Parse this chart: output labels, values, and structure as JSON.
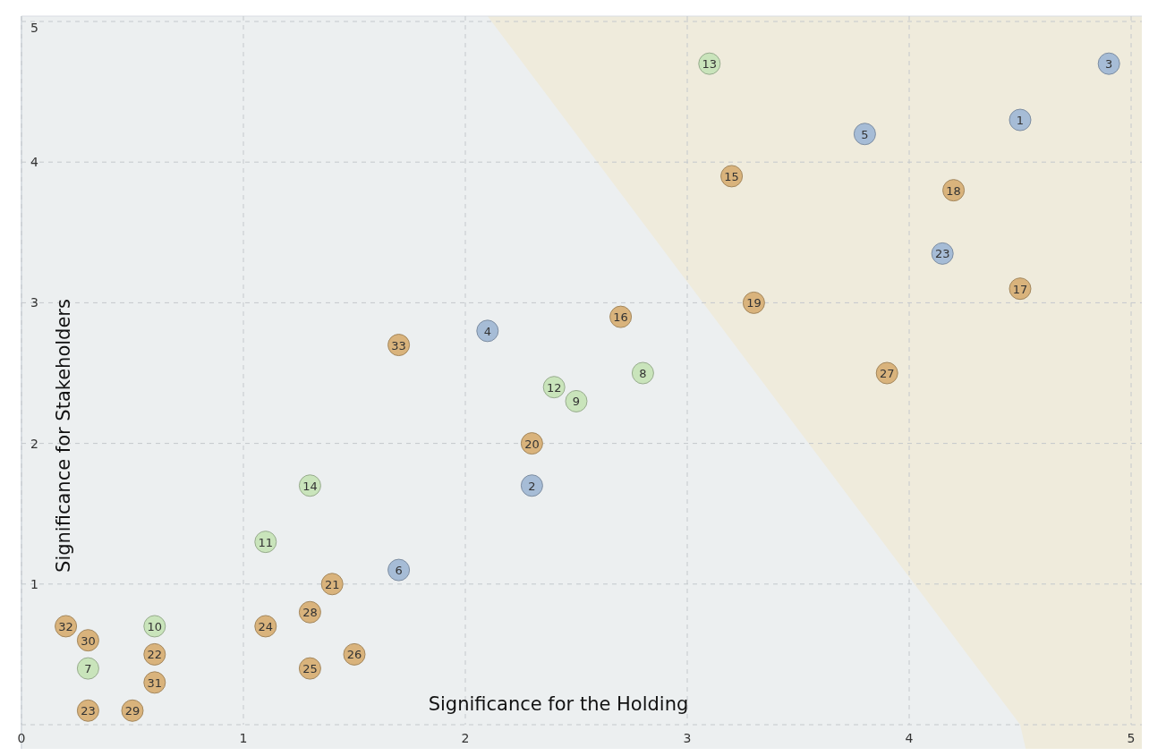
{
  "chart_data": {
    "type": "scatter",
    "xlabel": "Significance for the Holding",
    "ylabel": "Significance for Stakeholders",
    "xlim": [
      0,
      5
    ],
    "ylim": [
      0,
      5
    ],
    "xticks": [
      0,
      1,
      2,
      3,
      4,
      5
    ],
    "yticks": [
      {
        "value": 0,
        "label": null
      },
      1,
      2,
      3,
      4,
      5
    ],
    "grid": true,
    "marker": "circle",
    "series": [
      {
        "color": "#a6bcd6",
        "x": [
          4.5,
          2.3,
          4.9,
          2.1,
          3.8,
          1.7,
          4.15
        ],
        "values": [
          4.3,
          1.7,
          4.7,
          2.8,
          4.2,
          1.1,
          3.35
        ]
      },
      {
        "color": "#c9e4bb",
        "x": [
          0.3,
          2.8,
          2.5,
          0.6,
          1.1,
          2.4,
          3.1,
          1.3
        ],
        "values": [
          0.4,
          2.5,
          2.3,
          0.7,
          1.3,
          2.4,
          4.7,
          1.7
        ]
      },
      {
        "color": "#d9b37c",
        "x": [
          3.2,
          2.7,
          4.5,
          4.2,
          3.3,
          2.3,
          1.4,
          0.6,
          0.3,
          1.1,
          1.3,
          1.5,
          3.9,
          1.3,
          0.5,
          0.3,
          0.6,
          0.2,
          1.7
        ],
        "values": [
          3.9,
          2.9,
          3.1,
          3.8,
          3.0,
          2.0,
          1.0,
          0.5,
          0.1,
          0.7,
          0.4,
          0.5,
          2.5,
          0.8,
          0.1,
          0.6,
          0.3,
          0.7,
          2.7
        ]
      }
    ],
    "annotations": [
      {
        "text": "1",
        "x": 4.5,
        "y": 4.3
      },
      {
        "text": "2",
        "x": 2.3,
        "y": 1.7
      },
      {
        "text": "3",
        "x": 4.9,
        "y": 4.7
      },
      {
        "text": "4",
        "x": 2.1,
        "y": 2.8
      },
      {
        "text": "5",
        "x": 3.8,
        "y": 4.2
      },
      {
        "text": "6",
        "x": 1.7,
        "y": 1.1
      },
      {
        "text": "23",
        "x": 4.15,
        "y": 3.35
      },
      {
        "text": "7",
        "x": 0.3,
        "y": 0.4
      },
      {
        "text": "8",
        "x": 2.8,
        "y": 2.5
      },
      {
        "text": "9",
        "x": 2.5,
        "y": 2.3
      },
      {
        "text": "10",
        "x": 0.6,
        "y": 0.7
      },
      {
        "text": "11",
        "x": 1.1,
        "y": 1.3
      },
      {
        "text": "12",
        "x": 2.4,
        "y": 2.4
      },
      {
        "text": "13",
        "x": 3.1,
        "y": 4.7
      },
      {
        "text": "14",
        "x": 1.3,
        "y": 1.7
      },
      {
        "text": "15",
        "x": 3.2,
        "y": 3.9
      },
      {
        "text": "16",
        "x": 2.7,
        "y": 2.9
      },
      {
        "text": "17",
        "x": 4.5,
        "y": 3.1
      },
      {
        "text": "18",
        "x": 4.2,
        "y": 3.8
      },
      {
        "text": "19",
        "x": 3.3,
        "y": 3.0
      },
      {
        "text": "20",
        "x": 2.3,
        "y": 2.0
      },
      {
        "text": "21",
        "x": 1.4,
        "y": 1.0
      },
      {
        "text": "22",
        "x": 0.6,
        "y": 0.5
      },
      {
        "text": "23",
        "x": 0.3,
        "y": 0.1
      },
      {
        "text": "24",
        "x": 1.1,
        "y": 0.7
      },
      {
        "text": "25",
        "x": 1.3,
        "y": 0.4
      },
      {
        "text": "26",
        "x": 1.5,
        "y": 0.5
      },
      {
        "text": "27",
        "x": 3.9,
        "y": 2.5
      },
      {
        "text": "28",
        "x": 1.3,
        "y": 0.8
      },
      {
        "text": "29",
        "x": 0.5,
        "y": 0.1
      },
      {
        "text": "30",
        "x": 0.3,
        "y": 0.6
      },
      {
        "text": "31",
        "x": 0.6,
        "y": 0.3
      },
      {
        "text": "32",
        "x": 0.2,
        "y": 0.7
      },
      {
        "text": "33",
        "x": 1.7,
        "y": 2.7
      }
    ]
  }
}
